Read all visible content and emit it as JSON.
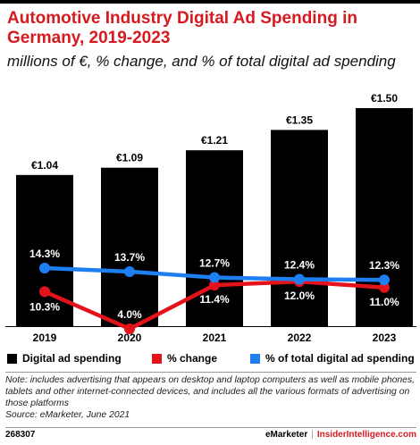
{
  "header": {
    "title": "Automotive Industry Digital Ad Spending in Germany, 2019-2023",
    "subtitle": "millions of €, % change, and % of total digital ad spending"
  },
  "colors": {
    "bars": "#000000",
    "change_line": "#e3121b",
    "share_line": "#1e7ff2",
    "title": "#d71920"
  },
  "chart_data": {
    "type": "bar",
    "categories": [
      "2019",
      "2020",
      "2021",
      "2022",
      "2023"
    ],
    "series": [
      {
        "name": "Digital ad spending",
        "type": "bar",
        "values": [
          1.04,
          1.09,
          1.21,
          1.35,
          1.5
        ],
        "labels": [
          "€1.04",
          "€1.09",
          "€1.21",
          "€1.35",
          "€1.50"
        ]
      },
      {
        "name": "% change",
        "type": "line",
        "values": [
          10.3,
          4.0,
          11.4,
          12.0,
          11.0
        ],
        "labels": [
          "10.3%",
          "4.0%",
          "11.4%",
          "12.0%",
          "11.0%"
        ]
      },
      {
        "name": "% of total digital ad spending",
        "type": "line",
        "values": [
          14.3,
          13.7,
          12.7,
          12.4,
          12.3
        ],
        "labels": [
          "14.3%",
          "13.7%",
          "12.7%",
          "12.4%",
          "12.3%"
        ]
      }
    ],
    "ylim_bar": [
      0,
      1.6
    ],
    "ylim_line": [
      0,
      17.5
    ],
    "grid": false,
    "legend_position": "bottom"
  },
  "legend": {
    "items": [
      "Digital ad spending",
      "% change",
      "% of total digital ad spending"
    ]
  },
  "note": {
    "text": "Note: includes advertising that appears on desktop and laptop computers as well as mobile phones, tablets and other internet-connected devices, and includes all the various formats of advertising on those platforms",
    "source": "Source: eMarketer, June 2021"
  },
  "footer": {
    "id": "268307",
    "brand1": "eMarketer",
    "separator": "|",
    "brand2": "InsiderIntelligence.com"
  }
}
